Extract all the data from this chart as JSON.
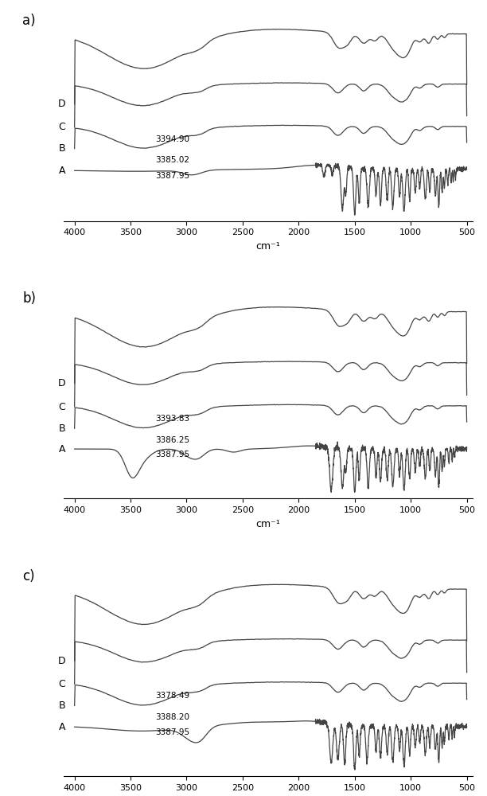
{
  "panels": [
    "a)",
    "b)",
    "c)"
  ],
  "x_min": 500,
  "x_max": 4000,
  "xlabel": "cm⁻¹",
  "panel_annotations": [
    {
      "C": "3394.90",
      "B": "3385.02",
      "A": "3387.95"
    },
    {
      "C": "3393.83",
      "B": "3386.25",
      "A": "3387.95"
    },
    {
      "C": "3378.49",
      "B": "3388.20",
      "A": "3387.95"
    }
  ],
  "line_color": "#444444",
  "line_width": 0.9,
  "background_color": "#ffffff",
  "offsets": [
    0.0,
    0.55,
    1.1,
    1.75
  ]
}
